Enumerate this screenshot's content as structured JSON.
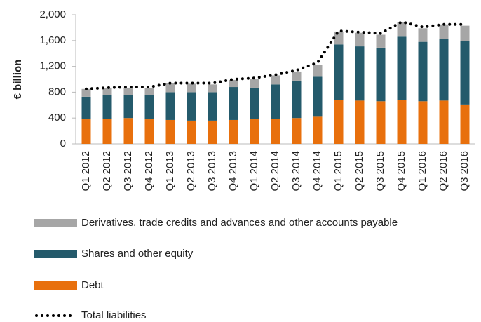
{
  "chart_data": {
    "type": "bar",
    "y_label": "€ billion",
    "categories": [
      "Q1 2012",
      "Q2 2012",
      "Q3 2012",
      "Q4 2012",
      "Q1 2013",
      "Q2 2013",
      "Q3 2013",
      "Q4 2013",
      "Q1 2014",
      "Q2 2014",
      "Q3 2014",
      "Q4 2014",
      "Q1 2015",
      "Q2 2015",
      "Q3 2015",
      "Q4 2015",
      "Q1 2016",
      "Q2 2016",
      "Q3 2016"
    ],
    "series": [
      {
        "name": "Derivatives, trade credits and advances and other accounts payable",
        "type": "bar",
        "color": "#a6a6a6",
        "values": [
          120,
          120,
          110,
          110,
          140,
          130,
          120,
          110,
          140,
          140,
          140,
          180,
          200,
          210,
          200,
          220,
          210,
          230,
          240
        ]
      },
      {
        "name": "Shares and other equity",
        "type": "bar",
        "color": "#245a6b",
        "values": [
          350,
          360,
          360,
          370,
          430,
          440,
          440,
          510,
          490,
          530,
          580,
          620,
          860,
          840,
          830,
          980,
          920,
          950,
          980
        ]
      },
      {
        "name": "Debt",
        "type": "bar",
        "color": "#e8700d",
        "values": [
          380,
          390,
          400,
          380,
          370,
          360,
          360,
          370,
          380,
          390,
          400,
          420,
          680,
          670,
          660,
          680,
          660,
          670,
          610
        ]
      },
      {
        "name": "Total liabilities",
        "type": "line",
        "color": "#000000",
        "values": [
          850,
          870,
          880,
          880,
          940,
          940,
          940,
          1000,
          1020,
          1070,
          1140,
          1260,
          1750,
          1730,
          1710,
          1890,
          1810,
          1850,
          1850
        ]
      }
    ],
    "ylim": [
      0,
      2000
    ],
    "yticks": [
      0,
      400,
      800,
      {
        "value": 1200,
        "label": "1,200"
      },
      {
        "value": 1600,
        "label": "1,600"
      },
      {
        "value": 2000,
        "label": "2,000"
      }
    ]
  }
}
